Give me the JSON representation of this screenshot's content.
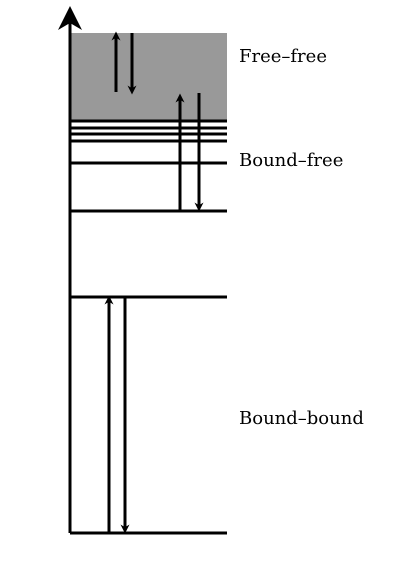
{
  "labels": {
    "free_free": "Free–free",
    "bound_free": "Bound–free",
    "bound_bound": "Bound–bound"
  },
  "colors": {
    "continuum_fill": "#999999",
    "line": "#000000",
    "background": "#ffffff"
  },
  "transitions": [
    {
      "name": "free-free",
      "kind": "free-free"
    },
    {
      "name": "bound-free",
      "kind": "bound-free"
    },
    {
      "name": "bound-bound",
      "kind": "bound-bound"
    }
  ]
}
